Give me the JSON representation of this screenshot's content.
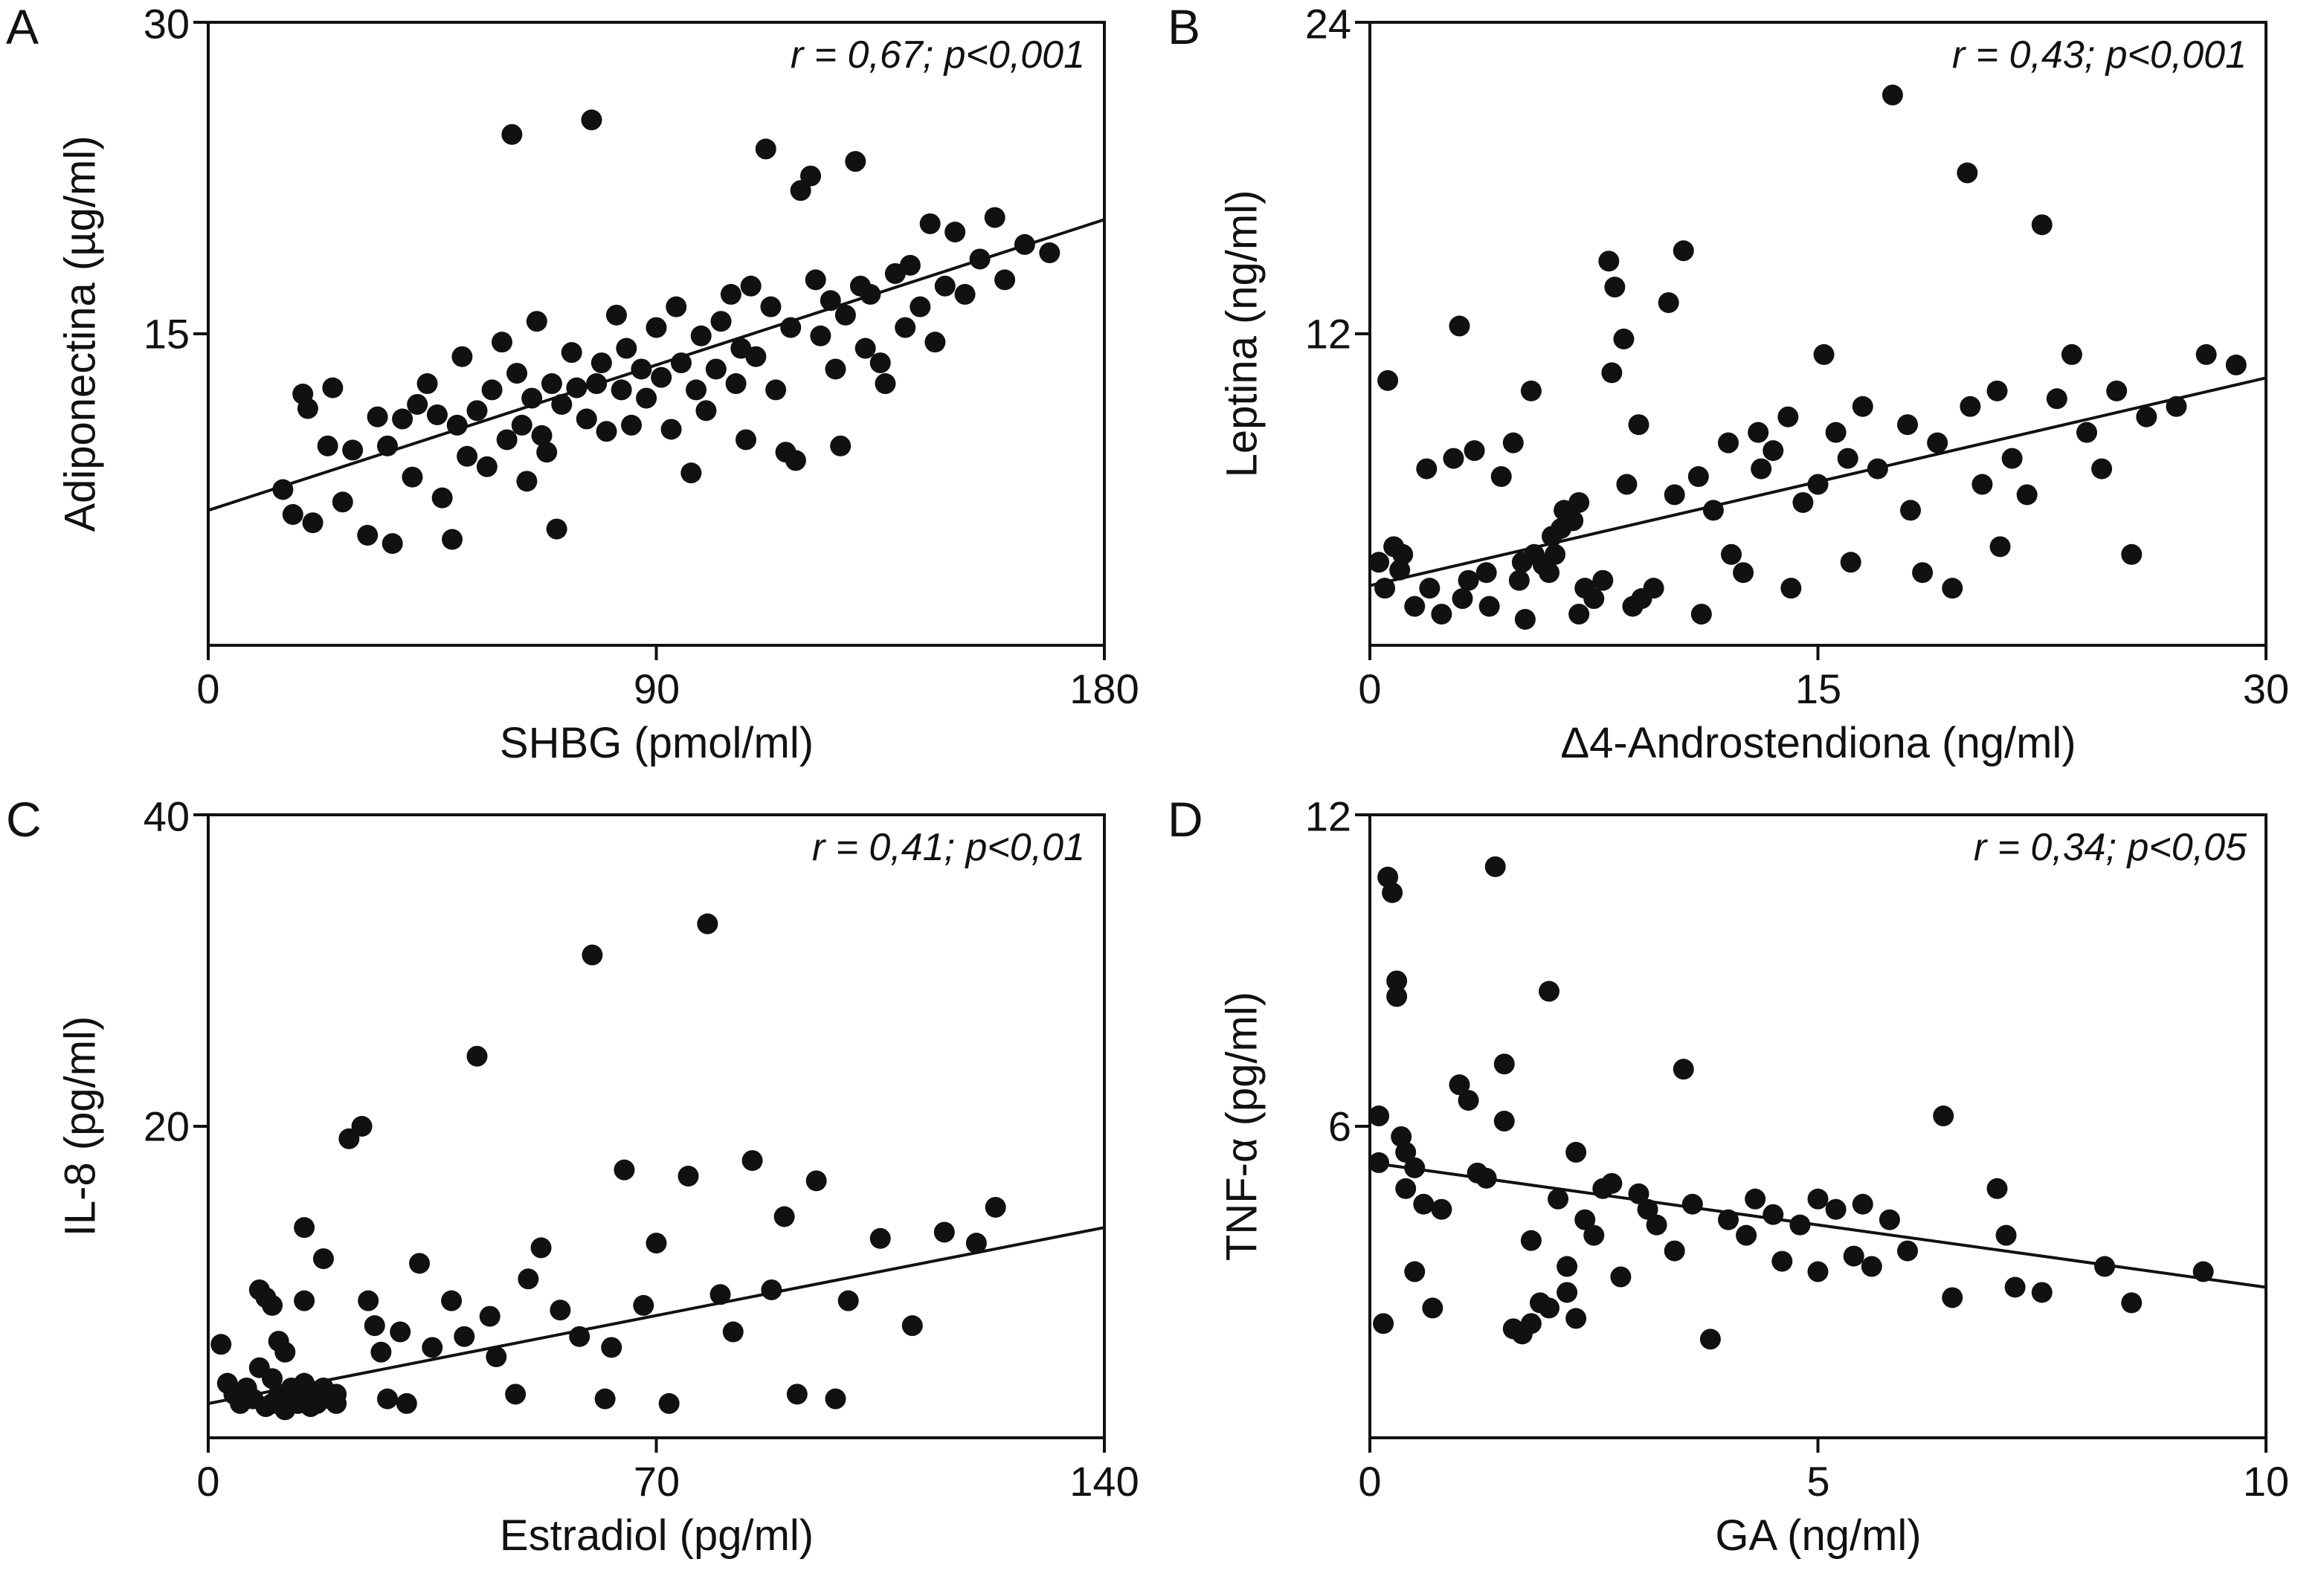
{
  "figure": {
    "background": "#ffffff",
    "axis_color": "#111111",
    "point_color": "#111111",
    "trend_color": "#111111"
  },
  "chart_data": [
    {
      "type": "scatter",
      "panel_letter": "A",
      "annotation": "r = 0,67; p<0,001",
      "xlabel": "SHBG (pmol/ml)",
      "ylabel": "Adiponectina (µg/ml)",
      "xlim": [
        0,
        180
      ],
      "ylim": [
        0,
        30
      ],
      "xticks": [
        0,
        90,
        180
      ],
      "yticks": [
        15,
        30
      ],
      "legend": "none",
      "grid": false,
      "trend": {
        "x": [
          0,
          180
        ],
        "y": [
          6.5,
          20.5
        ]
      },
      "points": [
        [
          15,
          7.5
        ],
        [
          17,
          6.3
        ],
        [
          19,
          12.1
        ],
        [
          20,
          11.4
        ],
        [
          21,
          5.9
        ],
        [
          24,
          9.6
        ],
        [
          25,
          12.4
        ],
        [
          27,
          6.9
        ],
        [
          29,
          9.4
        ],
        [
          32,
          5.3
        ],
        [
          34,
          11.0
        ],
        [
          36,
          9.6
        ],
        [
          37,
          4.9
        ],
        [
          39,
          10.9
        ],
        [
          41,
          8.1
        ],
        [
          42,
          11.6
        ],
        [
          44,
          12.6
        ],
        [
          46,
          11.1
        ],
        [
          47,
          7.1
        ],
        [
          49,
          5.1
        ],
        [
          50,
          10.6
        ],
        [
          51,
          13.9
        ],
        [
          52,
          9.1
        ],
        [
          54,
          11.3
        ],
        [
          56,
          8.6
        ],
        [
          57,
          12.3
        ],
        [
          59,
          14.6
        ],
        [
          60,
          9.9
        ],
        [
          61,
          24.6
        ],
        [
          62,
          13.1
        ],
        [
          63,
          10.6
        ],
        [
          64,
          7.9
        ],
        [
          65,
          11.9
        ],
        [
          66,
          15.6
        ],
        [
          67,
          10.1
        ],
        [
          68,
          9.3
        ],
        [
          69,
          12.6
        ],
        [
          70,
          5.6
        ],
        [
          71,
          11.6
        ],
        [
          73,
          14.1
        ],
        [
          74,
          12.4
        ],
        [
          76,
          10.9
        ],
        [
          77,
          25.3
        ],
        [
          78,
          12.6
        ],
        [
          79,
          13.6
        ],
        [
          80,
          10.3
        ],
        [
          82,
          15.9
        ],
        [
          83,
          12.3
        ],
        [
          84,
          14.3
        ],
        [
          85,
          10.6
        ],
        [
          87,
          13.3
        ],
        [
          88,
          11.9
        ],
        [
          90,
          15.3
        ],
        [
          91,
          12.9
        ],
        [
          93,
          10.4
        ],
        [
          94,
          16.3
        ],
        [
          95,
          13.6
        ],
        [
          97,
          8.3
        ],
        [
          98,
          12.3
        ],
        [
          99,
          14.9
        ],
        [
          100,
          11.3
        ],
        [
          102,
          13.3
        ],
        [
          103,
          15.6
        ],
        [
          105,
          16.9
        ],
        [
          106,
          12.6
        ],
        [
          107,
          14.3
        ],
        [
          108,
          9.9
        ],
        [
          109,
          17.3
        ],
        [
          110,
          13.9
        ],
        [
          112,
          23.9
        ],
        [
          113,
          16.3
        ],
        [
          114,
          12.3
        ],
        [
          116,
          9.3
        ],
        [
          117,
          15.3
        ],
        [
          118,
          8.9
        ],
        [
          119,
          21.9
        ],
        [
          121,
          22.6
        ],
        [
          122,
          17.6
        ],
        [
          123,
          14.9
        ],
        [
          125,
          16.6
        ],
        [
          126,
          13.3
        ],
        [
          127,
          9.6
        ],
        [
          128,
          15.9
        ],
        [
          130,
          23.3
        ],
        [
          131,
          17.3
        ],
        [
          132,
          14.3
        ],
        [
          133,
          16.9
        ],
        [
          135,
          13.6
        ],
        [
          136,
          12.6
        ],
        [
          138,
          17.9
        ],
        [
          140,
          15.3
        ],
        [
          141,
          18.3
        ],
        [
          143,
          16.3
        ],
        [
          145,
          20.3
        ],
        [
          146,
          14.6
        ],
        [
          148,
          17.3
        ],
        [
          150,
          19.9
        ],
        [
          152,
          16.9
        ],
        [
          155,
          18.6
        ],
        [
          158,
          20.6
        ],
        [
          160,
          17.6
        ],
        [
          164,
          19.3
        ],
        [
          169,
          18.9
        ]
      ]
    },
    {
      "type": "scatter",
      "panel_letter": "B",
      "annotation": "r = 0,43; p<0,001",
      "xlabel": "Δ4-Androstendiona (ng/ml)",
      "ylabel": "Leptina (ng/ml)",
      "xlim": [
        0,
        30
      ],
      "ylim": [
        0,
        24
      ],
      "xticks": [
        0,
        15,
        30
      ],
      "yticks": [
        12,
        24
      ],
      "legend": "none",
      "grid": false,
      "trend": {
        "x": [
          0,
          30
        ],
        "y": [
          2.3,
          10.3
        ]
      },
      "points": [
        [
          0.3,
          3.2
        ],
        [
          0.5,
          2.2
        ],
        [
          0.6,
          10.2
        ],
        [
          0.8,
          3.8
        ],
        [
          1.0,
          2.9
        ],
        [
          1.1,
          3.5
        ],
        [
          1.5,
          1.5
        ],
        [
          1.9,
          6.8
        ],
        [
          2.0,
          2.2
        ],
        [
          2.4,
          1.2
        ],
        [
          2.8,
          7.2
        ],
        [
          3.0,
          12.3
        ],
        [
          3.1,
          1.8
        ],
        [
          3.3,
          2.5
        ],
        [
          3.5,
          7.5
        ],
        [
          3.9,
          2.8
        ],
        [
          4.0,
          1.5
        ],
        [
          4.4,
          6.5
        ],
        [
          4.8,
          7.8
        ],
        [
          5.0,
          2.5
        ],
        [
          5.1,
          3.2
        ],
        [
          5.2,
          1.0
        ],
        [
          5.4,
          9.8
        ],
        [
          5.5,
          3.5
        ],
        [
          5.8,
          3.1
        ],
        [
          6.0,
          2.8
        ],
        [
          6.1,
          4.2
        ],
        [
          6.2,
          3.5
        ],
        [
          6.4,
          4.5
        ],
        [
          6.5,
          5.2
        ],
        [
          6.8,
          4.8
        ],
        [
          7.0,
          5.5
        ],
        [
          7.0,
          1.2
        ],
        [
          7.2,
          2.2
        ],
        [
          7.5,
          1.8
        ],
        [
          7.8,
          2.5
        ],
        [
          8.0,
          14.8
        ],
        [
          8.1,
          10.5
        ],
        [
          8.2,
          13.8
        ],
        [
          8.5,
          11.8
        ],
        [
          8.6,
          6.2
        ],
        [
          8.8,
          1.5
        ],
        [
          9.0,
          8.5
        ],
        [
          9.1,
          1.8
        ],
        [
          9.5,
          2.2
        ],
        [
          10.0,
          13.2
        ],
        [
          10.2,
          5.8
        ],
        [
          10.5,
          15.2
        ],
        [
          11.0,
          6.5
        ],
        [
          11.1,
          1.2
        ],
        [
          11.5,
          5.2
        ],
        [
          12.0,
          7.8
        ],
        [
          12.1,
          3.5
        ],
        [
          12.5,
          2.8
        ],
        [
          13.0,
          8.2
        ],
        [
          13.1,
          6.8
        ],
        [
          13.5,
          7.5
        ],
        [
          14.0,
          8.8
        ],
        [
          14.1,
          2.2
        ],
        [
          14.5,
          5.5
        ],
        [
          15.0,
          6.2
        ],
        [
          15.2,
          11.2
        ],
        [
          15.6,
          8.2
        ],
        [
          16.0,
          7.2
        ],
        [
          16.1,
          3.2
        ],
        [
          16.5,
          9.2
        ],
        [
          17.0,
          6.8
        ],
        [
          17.5,
          21.2
        ],
        [
          18.0,
          8.5
        ],
        [
          18.1,
          5.2
        ],
        [
          18.5,
          2.8
        ],
        [
          19.0,
          7.8
        ],
        [
          19.5,
          2.2
        ],
        [
          20.0,
          18.2
        ],
        [
          20.1,
          9.2
        ],
        [
          20.5,
          6.2
        ],
        [
          21.0,
          9.8
        ],
        [
          21.1,
          3.8
        ],
        [
          21.5,
          7.2
        ],
        [
          22.0,
          5.8
        ],
        [
          22.5,
          16.2
        ],
        [
          23.0,
          9.5
        ],
        [
          23.5,
          11.2
        ],
        [
          24.0,
          8.2
        ],
        [
          24.5,
          6.8
        ],
        [
          25.0,
          9.8
        ],
        [
          25.5,
          3.5
        ],
        [
          26.0,
          8.8
        ],
        [
          27.0,
          9.2
        ],
        [
          28.0,
          11.2
        ],
        [
          29.0,
          10.8
        ]
      ]
    },
    {
      "type": "scatter",
      "panel_letter": "C",
      "annotation": "r = 0,41; p<0,01",
      "xlabel": "Estradiol (pg/ml)",
      "ylabel": "IL-8 (pg/ml)",
      "xlim": [
        0,
        140
      ],
      "ylim": [
        0,
        40
      ],
      "xticks": [
        0,
        70,
        140
      ],
      "yticks": [
        20,
        40
      ],
      "legend": "none",
      "grid": false,
      "trend": {
        "x": [
          0,
          140
        ],
        "y": [
          2.2,
          13.5
        ]
      },
      "points": [
        [
          2,
          6.0
        ],
        [
          3,
          3.5
        ],
        [
          4,
          2.8
        ],
        [
          5,
          2.2
        ],
        [
          6,
          3.2
        ],
        [
          7,
          2.5
        ],
        [
          8,
          9.5
        ],
        [
          8,
          4.5
        ],
        [
          9,
          2.0
        ],
        [
          9,
          9.0
        ],
        [
          10,
          8.5
        ],
        [
          10,
          3.8
        ],
        [
          10,
          2.2
        ],
        [
          11,
          6.2
        ],
        [
          11,
          2.8
        ],
        [
          12,
          2.2
        ],
        [
          12,
          1.8
        ],
        [
          12,
          5.5
        ],
        [
          13,
          3.2
        ],
        [
          13,
          2.5
        ],
        [
          14,
          2.8
        ],
        [
          14,
          2.2
        ],
        [
          15,
          13.5
        ],
        [
          15,
          8.8
        ],
        [
          15,
          3.5
        ],
        [
          16,
          2.5
        ],
        [
          16,
          2.0
        ],
        [
          17,
          2.8
        ],
        [
          17,
          2.2
        ],
        [
          18,
          11.5
        ],
        [
          18,
          3.2
        ],
        [
          19,
          2.5
        ],
        [
          20,
          2.8
        ],
        [
          20,
          2.2
        ],
        [
          22,
          19.2
        ],
        [
          24,
          20.0
        ],
        [
          25,
          8.8
        ],
        [
          26,
          7.2
        ],
        [
          27,
          5.5
        ],
        [
          28,
          2.5
        ],
        [
          30,
          6.8
        ],
        [
          31,
          2.2
        ],
        [
          33,
          11.2
        ],
        [
          35,
          5.8
        ],
        [
          38,
          8.8
        ],
        [
          40,
          6.5
        ],
        [
          42,
          24.5
        ],
        [
          44,
          7.8
        ],
        [
          45,
          5.2
        ],
        [
          48,
          2.8
        ],
        [
          50,
          10.2
        ],
        [
          52,
          12.2
        ],
        [
          55,
          8.2
        ],
        [
          58,
          6.5
        ],
        [
          60,
          31.0
        ],
        [
          62,
          2.5
        ],
        [
          63,
          5.8
        ],
        [
          65,
          17.2
        ],
        [
          68,
          8.5
        ],
        [
          70,
          12.5
        ],
        [
          72,
          2.2
        ],
        [
          75,
          16.8
        ],
        [
          78,
          33.0
        ],
        [
          80,
          9.2
        ],
        [
          82,
          6.8
        ],
        [
          85,
          17.8
        ],
        [
          88,
          9.5
        ],
        [
          90,
          14.2
        ],
        [
          92,
          2.8
        ],
        [
          95,
          16.5
        ],
        [
          98,
          2.5
        ],
        [
          100,
          8.8
        ],
        [
          105,
          12.8
        ],
        [
          110,
          7.2
        ],
        [
          115,
          13.2
        ],
        [
          120,
          12.5
        ],
        [
          123,
          14.8
        ]
      ]
    },
    {
      "type": "scatter",
      "panel_letter": "D",
      "annotation": "r = 0,34; p<0,05",
      "xlabel": "GA (ng/ml)",
      "ylabel": "TNF-α (pg/ml)",
      "xlim": [
        0,
        10
      ],
      "ylim": [
        0,
        12
      ],
      "xticks": [
        0,
        5,
        10
      ],
      "yticks": [
        6,
        12
      ],
      "legend": "none",
      "grid": false,
      "trend": {
        "x": [
          0,
          10
        ],
        "y": [
          5.3,
          2.9
        ]
      },
      "points": [
        [
          0.1,
          6.2
        ],
        [
          0.1,
          5.3
        ],
        [
          0.15,
          2.2
        ],
        [
          0.2,
          10.8
        ],
        [
          0.25,
          10.5
        ],
        [
          0.3,
          8.8
        ],
        [
          0.3,
          8.5
        ],
        [
          0.35,
          5.8
        ],
        [
          0.4,
          5.5
        ],
        [
          0.4,
          4.8
        ],
        [
          0.5,
          5.2
        ],
        [
          0.5,
          3.2
        ],
        [
          0.6,
          4.5
        ],
        [
          0.7,
          2.5
        ],
        [
          0.8,
          4.4
        ],
        [
          1.0,
          6.8
        ],
        [
          1.1,
          6.5
        ],
        [
          1.2,
          5.1
        ],
        [
          1.3,
          5.0
        ],
        [
          1.4,
          11.0
        ],
        [
          1.5,
          7.2
        ],
        [
          1.5,
          6.1
        ],
        [
          1.6,
          2.1
        ],
        [
          1.7,
          2.0
        ],
        [
          1.8,
          3.8
        ],
        [
          1.8,
          2.2
        ],
        [
          1.9,
          2.6
        ],
        [
          2.0,
          2.5
        ],
        [
          2.0,
          8.6
        ],
        [
          2.1,
          4.6
        ],
        [
          2.2,
          3.3
        ],
        [
          2.2,
          2.8
        ],
        [
          2.3,
          5.5
        ],
        [
          2.3,
          2.3
        ],
        [
          2.4,
          4.2
        ],
        [
          2.5,
          3.9
        ],
        [
          2.6,
          4.8
        ],
        [
          2.7,
          4.9
        ],
        [
          2.8,
          3.1
        ],
        [
          3.0,
          4.7
        ],
        [
          3.1,
          4.4
        ],
        [
          3.2,
          4.1
        ],
        [
          3.4,
          3.6
        ],
        [
          3.5,
          7.1
        ],
        [
          3.6,
          4.5
        ],
        [
          3.8,
          1.9
        ],
        [
          4.0,
          4.2
        ],
        [
          4.2,
          3.9
        ],
        [
          4.3,
          4.6
        ],
        [
          4.5,
          4.3
        ],
        [
          4.6,
          3.4
        ],
        [
          4.8,
          4.1
        ],
        [
          5.0,
          4.6
        ],
        [
          5.0,
          3.2
        ],
        [
          5.2,
          4.4
        ],
        [
          5.4,
          3.5
        ],
        [
          5.5,
          4.5
        ],
        [
          5.6,
          3.3
        ],
        [
          5.8,
          4.2
        ],
        [
          6.0,
          3.6
        ],
        [
          6.4,
          6.2
        ],
        [
          6.5,
          2.7
        ],
        [
          7.0,
          4.8
        ],
        [
          7.1,
          3.9
        ],
        [
          7.2,
          2.9
        ],
        [
          7.5,
          2.8
        ],
        [
          8.2,
          3.3
        ],
        [
          8.5,
          2.6
        ],
        [
          9.3,
          3.2
        ]
      ]
    }
  ]
}
